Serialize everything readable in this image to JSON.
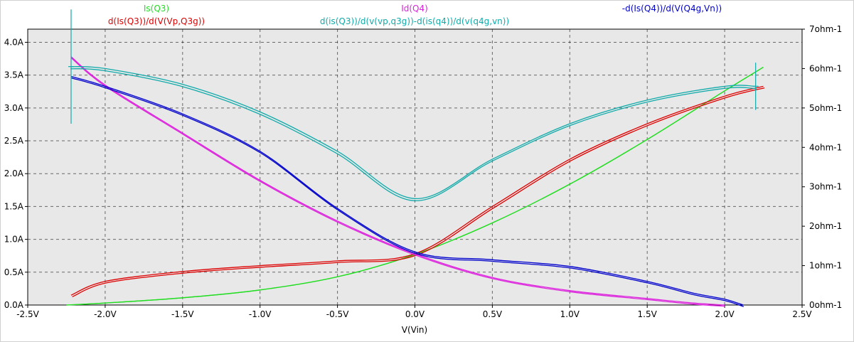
{
  "chart_data": {
    "type": "line",
    "xlabel": "V(Vin)",
    "xlim": [
      -2.5,
      2.5
    ],
    "x_ticks": [
      "-2.5V",
      "-2.0V",
      "-1.5V",
      "-1.0V",
      "-0.5V",
      "0.0V",
      "0.5V",
      "1.0V",
      "1.5V",
      "2.0V",
      "2.5V"
    ],
    "y_left": {
      "ylim": [
        0,
        4.2
      ],
      "ticks": [
        "0.0A",
        "0.5A",
        "1.0A",
        "1.5A",
        "2.0A",
        "2.5A",
        "3.0A",
        "3.5A",
        "4.0A"
      ]
    },
    "y_right": {
      "ylim": [
        0,
        7
      ],
      "ticks": [
        "0ohm-1",
        "1ohm-1",
        "2ohm-1",
        "3ohm-1",
        "4ohm-1",
        "5ohm-1",
        "6ohm-1",
        "7ohm-1"
      ]
    },
    "grid": true,
    "series": [
      {
        "name": "Is(Q3)",
        "color": "#22dd22",
        "axis": "left",
        "x": [
          -2.25,
          -2.0,
          -1.5,
          -1.0,
          -0.5,
          0.0,
          0.5,
          1.0,
          1.5,
          2.0,
          2.25
        ],
        "y": [
          0.0,
          0.03,
          0.11,
          0.23,
          0.43,
          0.77,
          1.25,
          1.84,
          2.52,
          3.26,
          3.62
        ]
      },
      {
        "name": "d(Is(Q3))/d(V(Vp,Q3g))",
        "color": "#dd0000",
        "axis": "right",
        "x": [
          -2.22,
          -2.0,
          -1.5,
          -1.0,
          -0.5,
          0.0,
          0.5,
          1.0,
          1.5,
          2.0,
          2.25
        ],
        "y": [
          0.25,
          0.6,
          0.85,
          1.0,
          1.12,
          1.3,
          2.5,
          3.7,
          4.6,
          5.3,
          5.55
        ]
      },
      {
        "name": "Id(Q4)",
        "color": "#dd22dd",
        "axis": "left",
        "x": [
          -2.22,
          -2.0,
          -1.5,
          -1.0,
          -0.5,
          0.0,
          0.5,
          1.0,
          1.5,
          1.8,
          2.0
        ],
        "y": [
          3.78,
          3.35,
          2.62,
          1.9,
          1.28,
          0.78,
          0.42,
          0.22,
          0.1,
          0.03,
          0.0
        ]
      },
      {
        "name": "d(is(Q3))/d(v(vp,q3g))-d(is(q4))/d(v(q4g,vn))",
        "color": "#11aaaa",
        "axis": "right",
        "x": [
          -2.22,
          -2.0,
          -1.5,
          -1.0,
          -0.5,
          0.0,
          0.5,
          1.0,
          1.5,
          2.0,
          2.2
        ],
        "y": [
          6.05,
          6.0,
          5.6,
          4.9,
          3.9,
          2.7,
          3.7,
          4.6,
          5.2,
          5.55,
          5.55
        ]
      },
      {
        "name": "-d(Is(Q4))/d(V(Q4g,Vn))",
        "color": "#0000cc",
        "axis": "right",
        "x": [
          -2.22,
          -2.0,
          -1.5,
          -1.0,
          -0.5,
          0.0,
          0.5,
          1.0,
          1.5,
          1.8,
          2.0,
          2.12
        ],
        "y": [
          5.8,
          5.55,
          4.85,
          3.9,
          2.45,
          1.35,
          1.15,
          0.98,
          0.6,
          0.3,
          0.15,
          0.0
        ]
      }
    ]
  }
}
